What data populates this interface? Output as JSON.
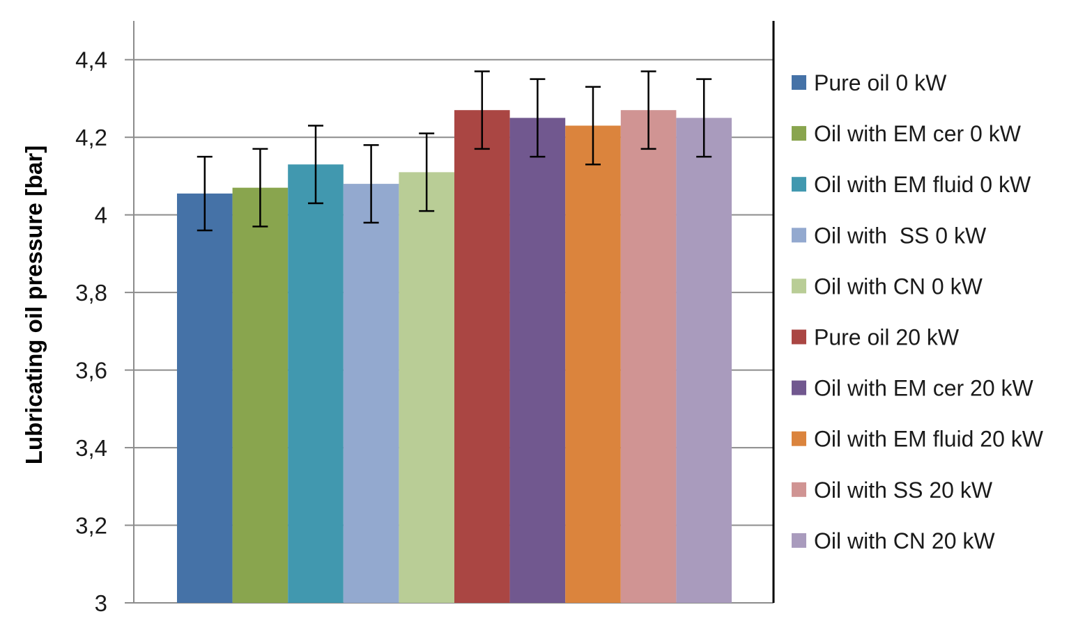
{
  "chart_data": {
    "type": "bar",
    "title": "",
    "xlabel": "",
    "ylabel": "Lubricating oil pressure [bar]",
    "ylim": [
      3,
      4.5
    ],
    "yticks": [
      3,
      3.2,
      3.4,
      3.6,
      3.8,
      4,
      4.2,
      4.4
    ],
    "ytick_labels": [
      "3",
      "3,2",
      "3,4",
      "3,6",
      "3,8",
      "4",
      "4,2",
      "4,4"
    ],
    "grid": true,
    "legend_position": "right",
    "series": [
      {
        "name": "Pure oil 0 kW",
        "value": 4.055,
        "error": 0.095,
        "color": "#4572A7"
      },
      {
        "name": "Oil with EM cer 0 kW",
        "value": 4.07,
        "error": 0.1,
        "color": "#89A54E"
      },
      {
        "name": "Oil with EM fluid 0 kW",
        "value": 4.13,
        "error": 0.1,
        "color": "#4198AF"
      },
      {
        "name": "Oil with  SS 0 kW",
        "value": 4.08,
        "error": 0.1,
        "color": "#93A9CF"
      },
      {
        "name": "Oil with CN 0 kW",
        "value": 4.11,
        "error": 0.1,
        "color": "#B9CD96"
      },
      {
        "name": "Pure oil 20 kW",
        "value": 4.27,
        "error": 0.1,
        "color": "#AA4643"
      },
      {
        "name": "Oil with EM cer 20 kW",
        "value": 4.25,
        "error": 0.1,
        "color": "#71588F"
      },
      {
        "name": "Oil with EM fluid 20 kW",
        "value": 4.23,
        "error": 0.1,
        "color": "#DB843D"
      },
      {
        "name": "Oil with SS 20 kW",
        "value": 4.27,
        "error": 0.1,
        "color": "#D09493"
      },
      {
        "name": "Oil with CN 20 kW",
        "value": 4.25,
        "error": 0.1,
        "color": "#A99BBD"
      }
    ]
  }
}
